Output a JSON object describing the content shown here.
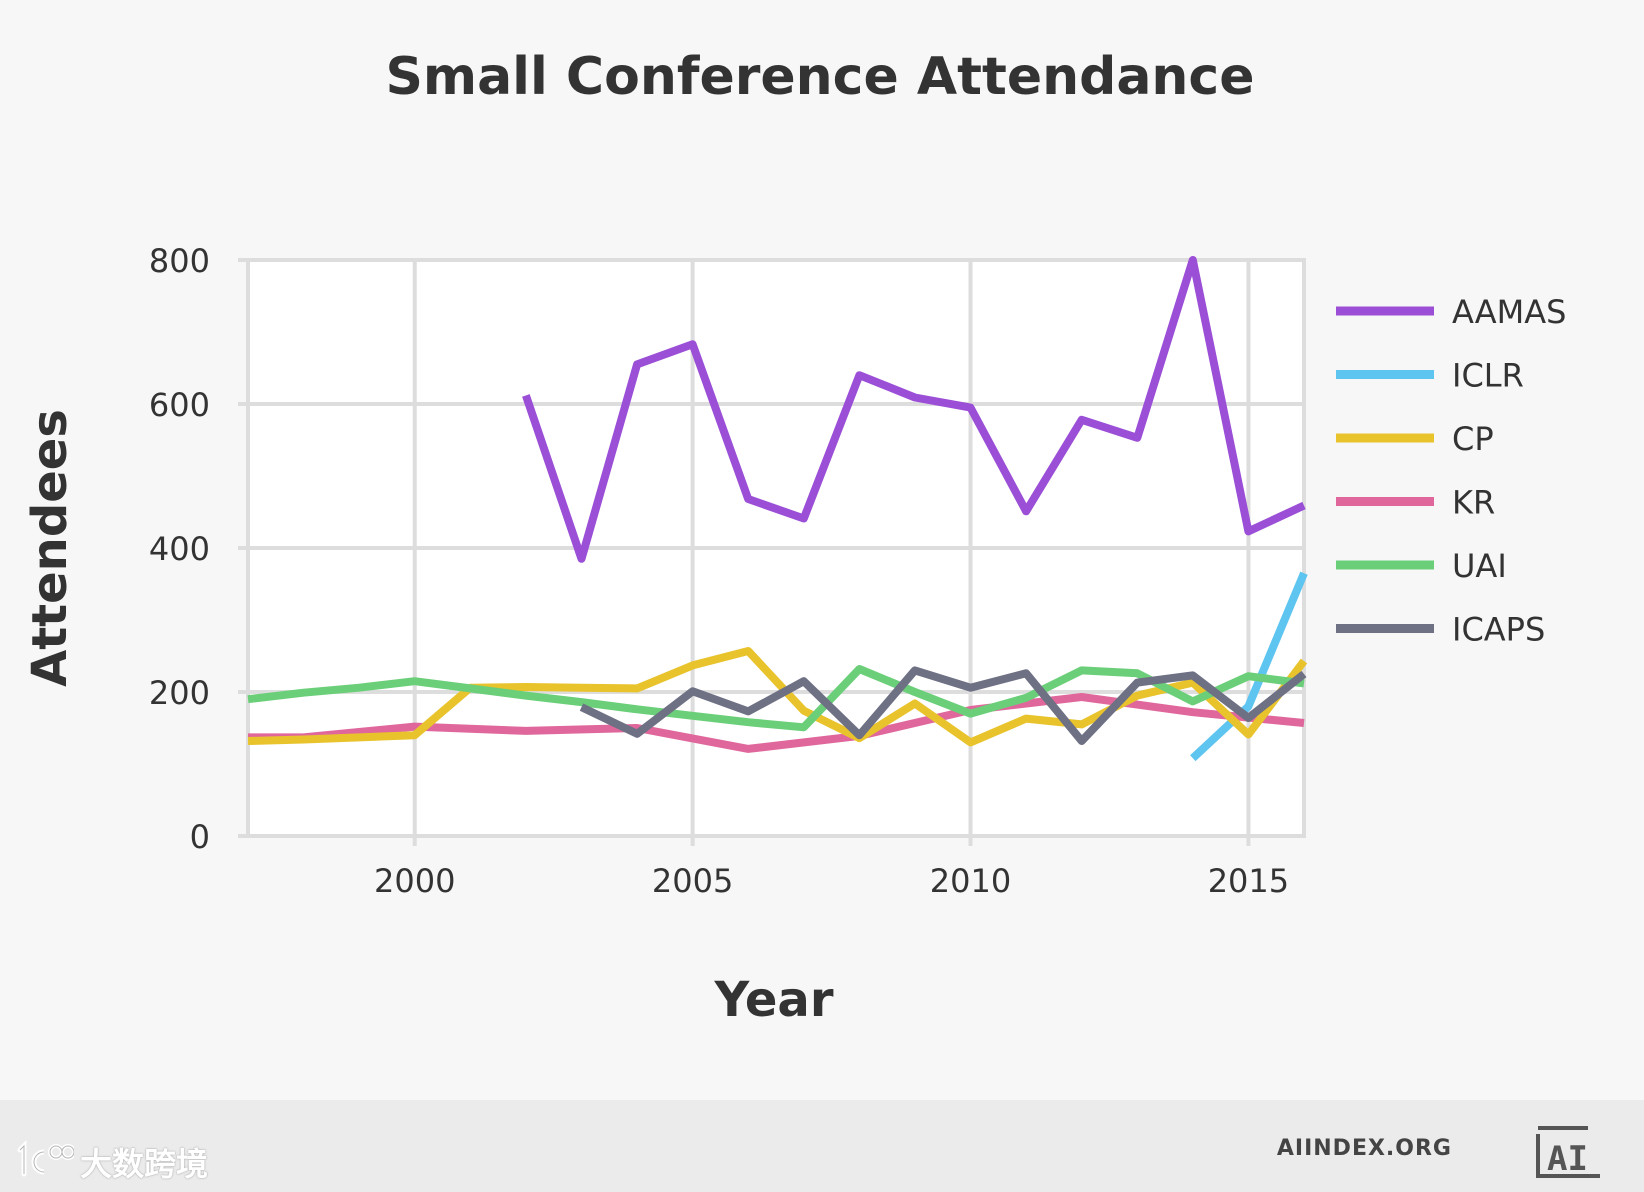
{
  "chart_data": {
    "type": "line",
    "title": "Small Conference Attendance",
    "xlabel": "Year",
    "ylabel": "Attendees",
    "xlim": [
      1997,
      2016
    ],
    "ylim": [
      0,
      800
    ],
    "xticks": [
      2000,
      2005,
      2010,
      2015
    ],
    "yticks": [
      0,
      200,
      400,
      600,
      800
    ],
    "grid": true,
    "legend_position": "right",
    "series": [
      {
        "name": "AAMAS",
        "color": "#9b4fd6",
        "x": [
          2002,
          2003,
          2004,
          2005,
          2006,
          2007,
          2008,
          2009,
          2010,
          2011,
          2012,
          2013,
          2014,
          2015,
          2016
        ],
        "y": [
          612,
          385,
          655,
          683,
          468,
          441,
          640,
          609,
          595,
          451,
          578,
          553,
          800,
          423,
          459
        ]
      },
      {
        "name": "ICLR",
        "color": "#5ec4f0",
        "x": [
          2014,
          2015,
          2016
        ],
        "y": [
          108,
          180,
          365
        ]
      },
      {
        "name": "CP",
        "color": "#e8c32c",
        "x": [
          1997,
          1998,
          1999,
          2000,
          2001,
          2002,
          2003,
          2004,
          2005,
          2006,
          2007,
          2008,
          2009,
          2010,
          2011,
          2012,
          2013,
          2014,
          2015,
          2016
        ],
        "y": [
          132,
          134,
          137,
          140,
          206,
          207,
          206,
          205,
          237,
          257,
          174,
          136,
          184,
          130,
          163,
          155,
          195,
          213,
          141,
          243
        ]
      },
      {
        "name": "KR",
        "color": "#e0679b",
        "x": [
          1997,
          1998,
          2000,
          2002,
          2004,
          2006,
          2008,
          2010,
          2012,
          2014,
          2016
        ],
        "y": [
          137,
          137,
          152,
          146,
          150,
          121,
          139,
          175,
          193,
          172,
          157
        ]
      },
      {
        "name": "UAI",
        "color": "#6bcf79",
        "x": [
          1997,
          1998,
          1999,
          2000,
          2001,
          2002,
          2003,
          2004,
          2005,
          2006,
          2007,
          2008,
          2009,
          2010,
          2011,
          2012,
          2013,
          2014,
          2015,
          2016
        ],
        "y": [
          190,
          199,
          206,
          215,
          205,
          195,
          186,
          176,
          167,
          158,
          151,
          232,
          200,
          170,
          192,
          230,
          226,
          187,
          222,
          212
        ]
      },
      {
        "name": "ICAPS",
        "color": "#6e7084",
        "x": [
          2003,
          2004,
          2005,
          2006,
          2007,
          2008,
          2009,
          2010,
          2011,
          2012,
          2013,
          2014,
          2015,
          2016
        ],
        "y": [
          179,
          142,
          201,
          173,
          215,
          140,
          230,
          206,
          226,
          132,
          213,
          223,
          164,
          225
        ]
      }
    ]
  },
  "footer": {
    "watermark_text": "大数跨境",
    "site_label": "AIINDEX.ORG",
    "ai_logo_text": "AI"
  }
}
